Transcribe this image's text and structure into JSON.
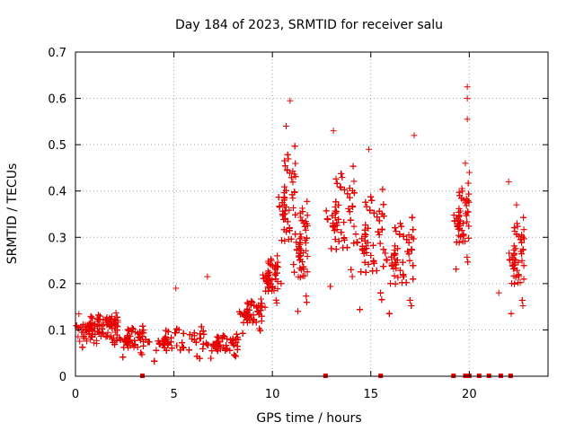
{
  "chart_data": {
    "type": "scatter",
    "title": "Day 184 of 2023, SRMTID for receiver salu",
    "xlabel": "GPS time / hours",
    "ylabel": "SRMTID / TECUs",
    "xlim": [
      0,
      24
    ],
    "ylim": [
      0,
      0.7
    ],
    "x_ticks": [
      0,
      5,
      10,
      15,
      20
    ],
    "x_tick_labels": [
      "0",
      "5",
      "10",
      "15",
      "20"
    ],
    "y_ticks": [
      0,
      0.1,
      0.2,
      0.3,
      0.4,
      0.5,
      0.6,
      0.7
    ],
    "y_tick_labels": [
      "0",
      "0.1",
      "0.2",
      "0.3",
      "0.4",
      "0.5",
      "0.6",
      "0.7"
    ],
    "grid": true,
    "marker": "plus",
    "color": "#e60000",
    "segments": [
      {
        "t0": 0.0,
        "t1": 2.2,
        "lo": 0.05,
        "hi": 0.15
      },
      {
        "t0": 2.2,
        "t1": 3.5,
        "lo": 0.03,
        "hi": 0.12
      },
      {
        "t0": 3.5,
        "t1": 6.6,
        "lo": 0.02,
        "hi": 0.12
      },
      {
        "t0": 6.6,
        "t1": 8.3,
        "lo": 0.03,
        "hi": 0.1
      },
      {
        "t0": 8.3,
        "t1": 9.5,
        "lo": 0.08,
        "hi": 0.18
      },
      {
        "t0": 9.5,
        "t1": 10.3,
        "lo": 0.13,
        "hi": 0.28
      },
      {
        "t0": 10.3,
        "t1": 11.2,
        "lo": 0.15,
        "hi": 0.55
      },
      {
        "t0": 11.2,
        "t1": 11.8,
        "lo": 0.1,
        "hi": 0.42
      },
      {
        "t0": 12.7,
        "t1": 14.2,
        "lo": 0.15,
        "hi": 0.5
      },
      {
        "t0": 14.2,
        "t1": 15.7,
        "lo": 0.1,
        "hi": 0.45
      },
      {
        "t0": 15.7,
        "t1": 17.2,
        "lo": 0.1,
        "hi": 0.38
      },
      {
        "t0": 19.2,
        "t1": 20.0,
        "lo": 0.2,
        "hi": 0.45
      },
      {
        "t0": 22.0,
        "t1": 22.8,
        "lo": 0.1,
        "hi": 0.38
      }
    ],
    "notable_points": [
      {
        "x": 5.1,
        "y": 0.19
      },
      {
        "x": 6.7,
        "y": 0.215
      },
      {
        "x": 10.9,
        "y": 0.595
      },
      {
        "x": 10.7,
        "y": 0.54
      },
      {
        "x": 13.1,
        "y": 0.53
      },
      {
        "x": 14.9,
        "y": 0.49
      },
      {
        "x": 17.2,
        "y": 0.52
      },
      {
        "x": 19.9,
        "y": 0.625
      },
      {
        "x": 19.9,
        "y": 0.6
      },
      {
        "x": 19.9,
        "y": 0.555
      },
      {
        "x": 19.8,
        "y": 0.46
      },
      {
        "x": 20.0,
        "y": 0.44
      },
      {
        "x": 21.5,
        "y": 0.18
      },
      {
        "x": 22.0,
        "y": 0.42
      },
      {
        "x": 22.4,
        "y": 0.37
      }
    ],
    "zero_values_x": [
      3.4,
      12.7,
      15.5,
      19.2,
      19.8,
      20.0,
      20.5,
      21.0,
      21.6,
      22.1
    ]
  }
}
